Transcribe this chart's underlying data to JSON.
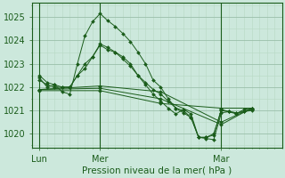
{
  "bg_color": "#cce8dc",
  "line_color": "#1a5c1a",
  "grid_color_major": "#9abfaa",
  "grid_color_minor": "#b8d8c4",
  "xlabel": "Pression niveau de la mer( hPa )",
  "ylim": [
    1019.4,
    1025.6
  ],
  "yticks": [
    1020,
    1021,
    1022,
    1023,
    1024,
    1025
  ],
  "xtick_labels": [
    "Lun",
    "Mer",
    "Mar"
  ],
  "xtick_positions": [
    0,
    48,
    144
  ],
  "vline_positions": [
    0,
    48,
    144
  ],
  "xlim": [
    -6,
    192
  ],
  "x_minor_step": 6,
  "series": [
    {
      "x": [
        0,
        6,
        12,
        18,
        24,
        30,
        36,
        42,
        48,
        54,
        60,
        66,
        72,
        78,
        84,
        90,
        96,
        102,
        108,
        114,
        120,
        126,
        132,
        138,
        144,
        150,
        156,
        162,
        168
      ],
      "y": [
        1022.4,
        1022.0,
        1022.1,
        1021.8,
        1021.7,
        1023.0,
        1024.2,
        1024.8,
        1025.15,
        1024.85,
        1024.6,
        1024.3,
        1023.95,
        1023.5,
        1023.0,
        1022.3,
        1022.0,
        1021.5,
        1021.1,
        1020.9,
        1020.7,
        1019.85,
        1019.8,
        1019.75,
        1020.9,
        1020.95,
        1020.85,
        1021.05,
        1021.1
      ]
    },
    {
      "x": [
        0,
        6,
        12,
        18,
        24,
        30,
        36,
        42,
        48,
        54,
        60,
        66,
        72,
        78,
        84,
        90,
        96,
        102,
        108,
        114,
        120,
        126,
        132,
        138,
        144,
        150,
        156,
        162,
        168
      ],
      "y": [
        1022.5,
        1022.2,
        1022.1,
        1022.0,
        1022.0,
        1022.5,
        1023.0,
        1023.3,
        1023.8,
        1023.6,
        1023.5,
        1023.3,
        1023.0,
        1022.5,
        1022.2,
        1021.9,
        1021.7,
        1021.4,
        1021.1,
        1021.0,
        1020.7,
        1019.85,
        1019.85,
        1020.0,
        1021.0,
        1020.95,
        1020.9,
        1020.95,
        1021.0
      ]
    },
    {
      "x": [
        0,
        48,
        96,
        144,
        168
      ],
      "y": [
        1021.9,
        1022.05,
        1021.8,
        1020.5,
        1021.1
      ]
    },
    {
      "x": [
        0,
        48,
        96,
        144,
        168
      ],
      "y": [
        1021.9,
        1021.95,
        1021.5,
        1020.4,
        1021.1
      ]
    },
    {
      "x": [
        0,
        48,
        96,
        144,
        168
      ],
      "y": [
        1021.85,
        1021.85,
        1021.3,
        1021.1,
        1021.1
      ]
    },
    {
      "x": [
        0,
        6,
        12,
        18,
        24,
        30,
        36,
        42,
        48,
        54,
        60,
        66,
        72,
        78,
        84,
        90,
        96,
        102,
        108,
        114,
        120,
        126,
        132,
        138,
        144,
        150,
        156,
        162,
        168
      ],
      "y": [
        1022.3,
        1022.1,
        1022.0,
        1022.0,
        1022.0,
        1022.5,
        1022.8,
        1023.3,
        1023.85,
        1023.7,
        1023.5,
        1023.2,
        1022.9,
        1022.5,
        1022.1,
        1021.7,
        1021.4,
        1021.1,
        1020.85,
        1021.05,
        1020.85,
        1019.85,
        1019.85,
        1019.95,
        1021.05,
        1020.95,
        1020.9,
        1020.95,
        1021.05
      ]
    }
  ]
}
